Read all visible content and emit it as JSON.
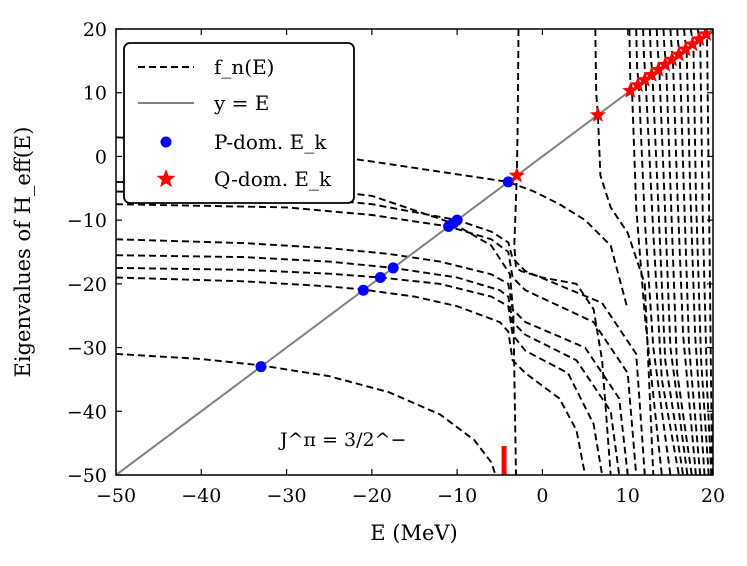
{
  "chart_data": {
    "type": "line",
    "xlabel": "E (MeV)",
    "ylabel": "Eigenvalues of H_eff(E)",
    "xlim": [
      -50,
      20
    ],
    "ylim": [
      -50,
      20
    ],
    "xticks": [
      "−50",
      "−40",
      "−30",
      "−20",
      "−10",
      "0",
      "10",
      "20"
    ],
    "yticks": [
      "−50",
      "−40",
      "−30",
      "−20",
      "−10",
      "0",
      "10",
      "20"
    ],
    "xtick_values": [
      -50,
      -40,
      -30,
      -20,
      -10,
      0,
      10,
      20
    ],
    "ytick_values": [
      -50,
      -40,
      -30,
      -20,
      -10,
      0,
      10,
      20
    ],
    "annotation": "J^π = 3/2^−",
    "threshold_marker_E": -4.5,
    "legend": {
      "placement": "top-left",
      "entries": [
        {
          "label": "f_n(E)",
          "style": "dashed-black"
        },
        {
          "label": "y = E",
          "style": "solid-gray"
        },
        {
          "label": "P-dom. E_k",
          "style": "blue-dot"
        },
        {
          "label": "Q-dom. E_k",
          "style": "red-star"
        }
      ]
    },
    "colors": {
      "f_n": "#000000",
      "diag": "#808080",
      "P": "#0000ff",
      "Q": "#ff0000"
    },
    "series": [
      {
        "name": "y = E",
        "x": [
          -50,
          20
        ],
        "y": [
          -50,
          20
        ]
      },
      {
        "name": "P-dom. E_k",
        "x": [
          -33,
          -21,
          -19,
          -17.5,
          -11,
          -10.5,
          -10,
          -4
        ],
        "y": [
          -33,
          -21,
          -19,
          -17.5,
          -11,
          -10.5,
          -10,
          -4
        ]
      },
      {
        "name": "Q-dom. E_k",
        "x": [
          -3,
          6.5,
          10.3,
          11.2,
          12,
          12.8,
          13.6,
          14.4,
          15.2,
          16,
          16.8,
          17.6,
          18.4,
          19.2
        ],
        "y": [
          -3,
          6.5,
          10.3,
          11.2,
          12,
          12.8,
          13.6,
          14.4,
          15.2,
          16,
          16.8,
          17.6,
          18.4,
          19.2
        ]
      }
    ],
    "f_n_curves": [
      {
        "x": [
          -50,
          -40,
          -33,
          -25,
          -18,
          -12,
          -8,
          -6,
          -5.5
        ],
        "y": [
          -31,
          -31.8,
          -32.8,
          -34.5,
          -37,
          -40.5,
          -44.5,
          -48,
          -50
        ]
      },
      {
        "x": [
          -50,
          -35,
          -25,
          -21,
          -15,
          -10,
          -5,
          -4,
          -3.5,
          -2,
          2,
          4,
          5
        ],
        "y": [
          -19,
          -19.6,
          -20.4,
          -20.9,
          -22,
          -23.5,
          -26,
          -27.5,
          -32,
          -34,
          -38,
          -43,
          -50
        ]
      },
      {
        "x": [
          -50,
          -35,
          -25,
          -19,
          -12,
          -6,
          -4,
          -3.5,
          -2,
          3,
          6,
          7
        ],
        "y": [
          -17.5,
          -17.8,
          -18.4,
          -19,
          -20,
          -22,
          -23.5,
          -28,
          -30.5,
          -34,
          -42,
          -50
        ]
      },
      {
        "x": [
          -50,
          -35,
          -25,
          -17.5,
          -10,
          -5,
          -4,
          -3.5,
          -2,
          4,
          8,
          9
        ],
        "y": [
          -15.5,
          -15.8,
          -16.5,
          -17.5,
          -19,
          -21,
          -22,
          -26,
          -28,
          -32,
          -40,
          -50
        ]
      },
      {
        "x": [
          -50,
          -35,
          -25,
          -18,
          -12,
          -6,
          -4,
          -3.5,
          -2,
          5,
          9,
          10
        ],
        "y": [
          -13,
          -13.6,
          -14.4,
          -15.3,
          -16.5,
          -18.5,
          -20,
          -24,
          -26,
          -30,
          -38,
          -50
        ]
      },
      {
        "x": [
          -50,
          -30,
          -20,
          -11,
          -6,
          -4,
          -3.5,
          -2,
          6,
          10,
          11
        ],
        "y": [
          -7.5,
          -8,
          -9.2,
          -11,
          -13,
          -15,
          -19,
          -21,
          -26,
          -34,
          -50
        ]
      },
      {
        "x": [
          -50,
          -30,
          -20,
          -10,
          -6,
          -4,
          -3.5,
          -2,
          7,
          11,
          12
        ],
        "y": [
          -5.5,
          -6.2,
          -7.5,
          -10,
          -11.8,
          -13.5,
          -16,
          -18,
          -23,
          -31,
          -50
        ]
      },
      {
        "x": [
          -50,
          -30,
          -20,
          -10.5,
          -6,
          -3.8,
          -3.4,
          -3.1
        ],
        "y": [
          -4,
          -4.6,
          -6.2,
          -10.5,
          -14,
          -18.5,
          -25,
          -50
        ]
      },
      {
        "x": [
          -50,
          -40,
          -30,
          -20,
          -10,
          -4,
          -1,
          2,
          5,
          8,
          10
        ],
        "y": [
          3,
          2.2,
          1,
          -0.8,
          -2.8,
          -4,
          -5.5,
          -7.5,
          -10,
          -14,
          -24
        ]
      },
      {
        "x": [
          -2.8,
          -2.9,
          -3,
          -3.3,
          -3.1,
          -2.5,
          0,
          4,
          6,
          7,
          8
        ],
        "y": [
          20,
          5,
          -3,
          -14,
          -17.5,
          -18,
          -19,
          -20,
          -24,
          -32,
          -50
        ]
      },
      {
        "x": [
          6.2,
          6.3,
          6.5,
          6.8,
          8,
          10,
          12,
          13
        ],
        "y": [
          20,
          10,
          6.5,
          -3,
          -8,
          -12,
          -20,
          -50
        ]
      },
      {
        "x": [
          10.2,
          10.3,
          10.5,
          11,
          12,
          14
        ],
        "y": [
          20,
          12,
          10.5,
          -8,
          -25,
          -50
        ]
      },
      {
        "x": [
          11,
          11.1,
          11.3,
          12,
          13,
          15
        ],
        "y": [
          20,
          14,
          11.2,
          -10,
          -30,
          -50
        ]
      },
      {
        "x": [
          11.8,
          11.9,
          12.1,
          13,
          14,
          16
        ],
        "y": [
          20,
          16,
          12,
          -12,
          -35,
          -50
        ]
      },
      {
        "x": [
          12.6,
          12.7,
          12.9,
          13.6,
          14.4,
          16.5
        ],
        "y": [
          20,
          16,
          12.8,
          -8,
          -32,
          -50
        ]
      },
      {
        "x": [
          13.4,
          13.5,
          13.7,
          14.3,
          15,
          17
        ],
        "y": [
          20,
          17,
          13.6,
          -6,
          -30,
          -50
        ]
      },
      {
        "x": [
          14.2,
          14.3,
          14.5,
          15.1,
          15.8,
          17.5
        ],
        "y": [
          20,
          17,
          14.4,
          -8,
          -34,
          -50
        ]
      },
      {
        "x": [
          15,
          15.1,
          15.3,
          15.8,
          16.5,
          18
        ],
        "y": [
          20,
          18,
          15.2,
          -5,
          -28,
          -50
        ]
      },
      {
        "x": [
          15.8,
          15.9,
          16.1,
          16.6,
          17.2,
          18.5
        ],
        "y": [
          20,
          18,
          16,
          -6,
          -30,
          -50
        ]
      },
      {
        "x": [
          16.6,
          16.7,
          16.9,
          17.3,
          17.9,
          19
        ],
        "y": [
          20,
          18.5,
          16.8,
          -4,
          -28,
          -50
        ]
      },
      {
        "x": [
          17.4,
          17.5,
          17.7,
          18,
          18.6,
          19.5
        ],
        "y": [
          20,
          19,
          17.6,
          -6,
          -32,
          -50
        ]
      },
      {
        "x": [
          18.2,
          18.3,
          18.5,
          18.8,
          19.3,
          19.8
        ],
        "y": [
          20,
          19.2,
          18.4,
          -10,
          -36,
          -50
        ]
      },
      {
        "x": [
          19,
          19.1,
          19.3,
          19.6,
          19.9
        ],
        "y": [
          20,
          19.6,
          19.2,
          -15,
          -50
        ]
      }
    ]
  }
}
